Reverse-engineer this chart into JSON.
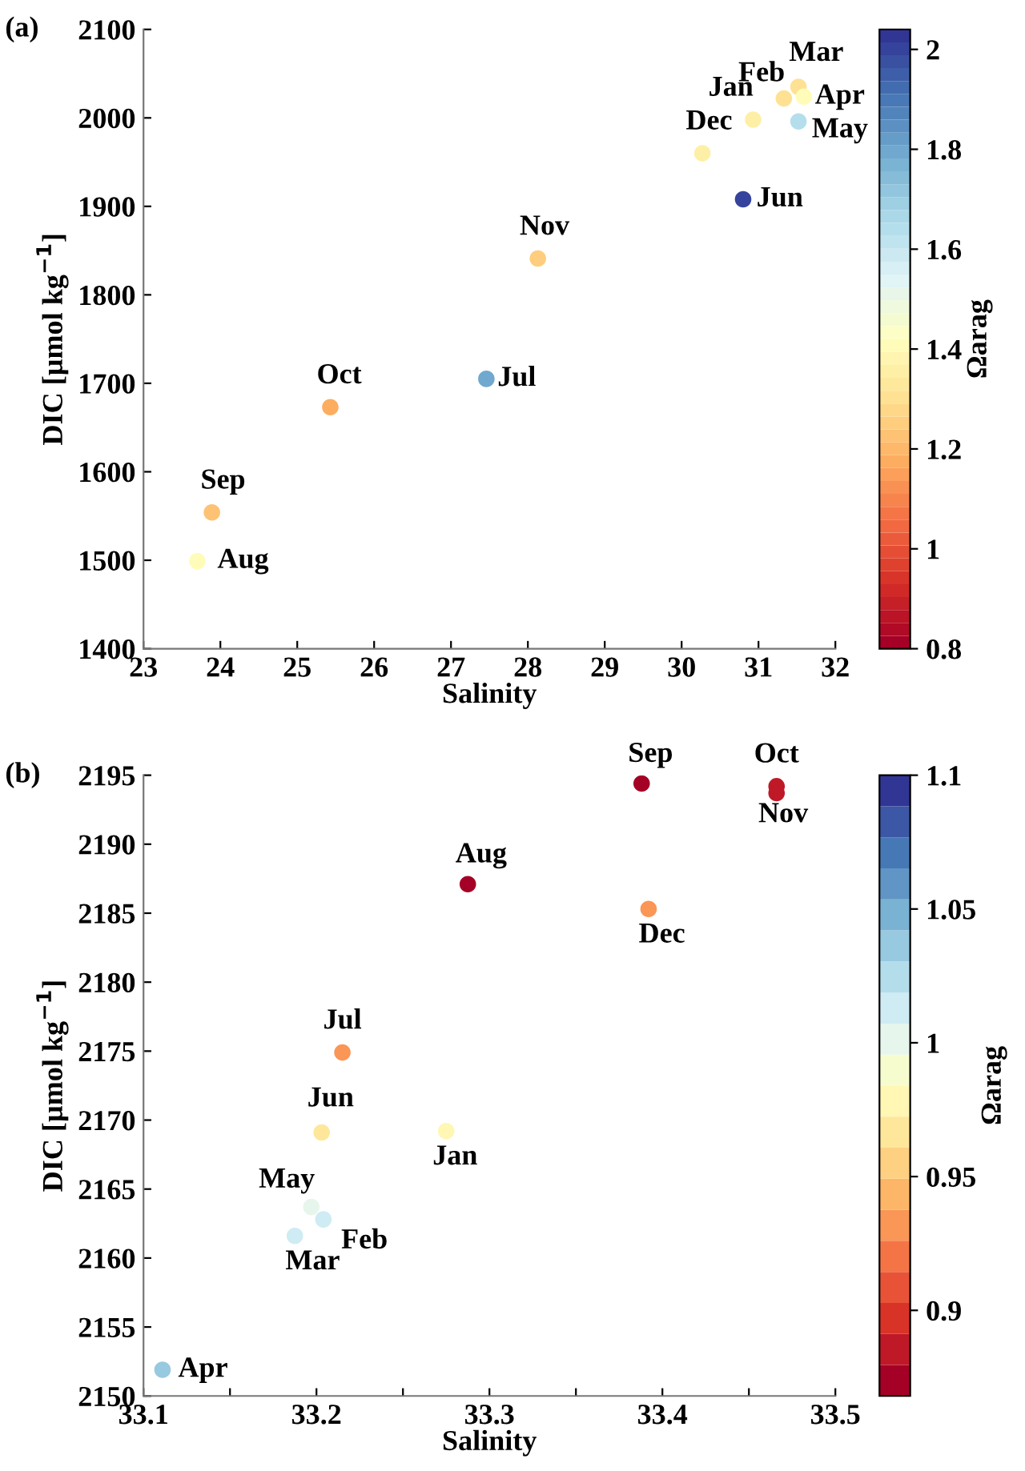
{
  "chart_data": [
    {
      "type": "scatter",
      "title": "(a)",
      "xlabel": "Salinity",
      "ylabel": "DIC [µmol kg$^{−1}$]",
      "clabel": "Ωarag",
      "x": [
        30.93,
        31.33,
        31.52,
        31.59,
        31.52,
        30.8,
        27.46,
        23.7,
        23.89,
        25.43,
        28.13,
        30.27
      ],
      "values": [
        1998,
        2022,
        2035,
        2024,
        1996,
        1908,
        1705,
        1499,
        1554,
        1673,
        1841,
        1960
      ],
      "cvalues": [
        1.35,
        1.3,
        1.3,
        1.42,
        1.65,
        2.0,
        1.8,
        1.4,
        1.22,
        1.18,
        1.25,
        1.35
      ],
      "xlim": [
        23,
        32
      ],
      "xticks": [
        23,
        24,
        25,
        26,
        27,
        28,
        29,
        30,
        31,
        32
      ],
      "ylim": [
        1400,
        2100
      ],
      "yticks": [
        1400,
        1500,
        1600,
        1700,
        1800,
        1900,
        2000,
        2100
      ],
      "clim": [
        0.8,
        2.04
      ],
      "cticks": [
        0.8,
        1,
        1.2,
        1.4,
        1.6,
        1.8,
        2
      ],
      "grid": false,
      "marker": "circle",
      "annotations": [
        {
          "text": "Jan",
          "x": 30.93,
          "y": 1998
        },
        {
          "text": "Feb",
          "x": 31.33,
          "y": 2022
        },
        {
          "text": "Mar",
          "x": 31.52,
          "y": 2035
        },
        {
          "text": "Apr",
          "x": 31.59,
          "y": 2024
        },
        {
          "text": "May",
          "x": 31.52,
          "y": 1996
        },
        {
          "text": "Jun",
          "x": 30.8,
          "y": 1908
        },
        {
          "text": "Jul",
          "x": 27.46,
          "y": 1705
        },
        {
          "text": "Aug",
          "x": 23.7,
          "y": 1499
        },
        {
          "text": "Sep",
          "x": 23.89,
          "y": 1554
        },
        {
          "text": "Oct",
          "x": 25.43,
          "y": 1673
        },
        {
          "text": "Nov",
          "x": 28.13,
          "y": 1841
        },
        {
          "text": "Dec",
          "x": 30.27,
          "y": 1960
        }
      ]
    },
    {
      "type": "scatter",
      "title": "(b)",
      "xlabel": "Salinity",
      "ylabel": "DIC [µmol kg$^{−1}$]",
      "clabel": "Ωarag",
      "x": [
        33.275,
        33.204,
        33.1875,
        33.111,
        33.197,
        33.203,
        33.215,
        33.2875,
        33.388,
        33.466,
        33.466,
        33.392
      ],
      "values": [
        2169.2,
        2162.8,
        2161.6,
        2151.9,
        2163.7,
        2169.1,
        2174.9,
        2187.1,
        2194.4,
        2194.2,
        2193.7,
        2185.3
      ],
      "cvalues": [
        0.975,
        1.01,
        1.01,
        1.035,
        1.0,
        0.965,
        0.935,
        0.875,
        0.875,
        0.89,
        0.89,
        0.935
      ],
      "xlim": [
        33.1,
        33.5
      ],
      "xticks": [
        33.1,
        {
          "value": 33.15,
          "label": null
        },
        33.2,
        {
          "value": 33.25,
          "label": null
        },
        33.3,
        {
          "value": 33.35,
          "label": null
        },
        33.4,
        {
          "value": 33.45,
          "label": null
        },
        33.5
      ],
      "ylim": [
        2150,
        2195
      ],
      "yticks": [
        2150,
        2155,
        2160,
        2165,
        2170,
        2175,
        2180,
        2185,
        2190,
        2195
      ],
      "clim": [
        0.868,
        1.1
      ],
      "cticks": [
        0.9,
        0.95,
        1,
        1.05,
        1.1
      ],
      "grid": false,
      "marker": "circle",
      "annotations": [
        {
          "text": "Jan",
          "x": 33.275,
          "y": 2169.2
        },
        {
          "text": "Feb",
          "x": 33.204,
          "y": 2162.8
        },
        {
          "text": "Mar",
          "x": 33.1875,
          "y": 2161.6
        },
        {
          "text": "Apr",
          "x": 33.111,
          "y": 2151.9
        },
        {
          "text": "May",
          "x": 33.197,
          "y": 2163.7
        },
        {
          "text": "Jun",
          "x": 33.203,
          "y": 2169.1
        },
        {
          "text": "Jul",
          "x": 33.215,
          "y": 2174.9
        },
        {
          "text": "Aug",
          "x": 33.2875,
          "y": 2187.1
        },
        {
          "text": "Sep",
          "x": 33.388,
          "y": 2194.4
        },
        {
          "text": "Oct",
          "x": 33.466,
          "y": 2194.2
        },
        {
          "text": "Nov",
          "x": 33.466,
          "y": 2193.7
        },
        {
          "text": "Dec",
          "x": 33.392,
          "y": 2185.3
        }
      ]
    }
  ]
}
